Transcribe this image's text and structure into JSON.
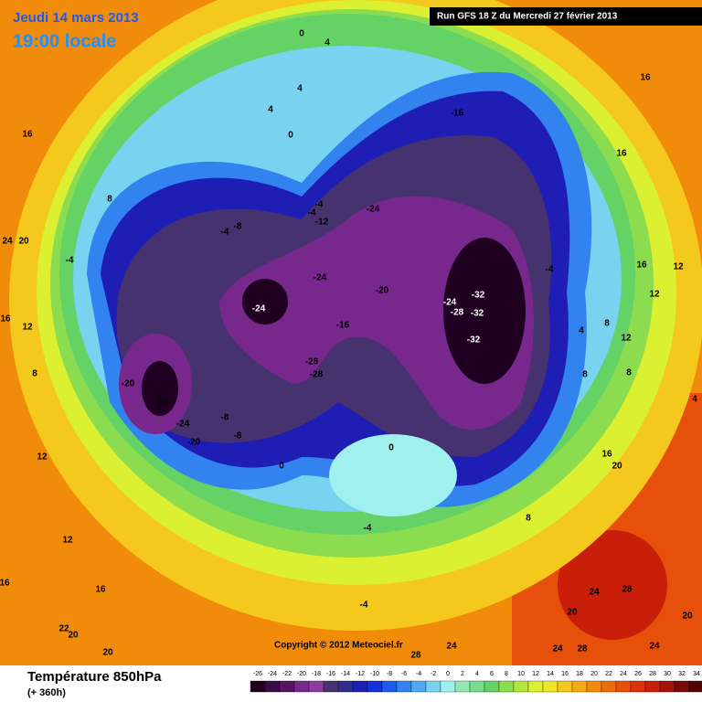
{
  "header": {
    "date": "Jeudi 14 mars 2013",
    "time": "19:00 locale",
    "run": "Run GFS 18 Z du Mercredi 27 février 2013"
  },
  "map": {
    "copyright": "Copyright © 2012 Meteociel.fr",
    "labels": [
      "0",
      "4",
      "4",
      "4",
      "0",
      "-16",
      "16",
      "16",
      "16",
      "8",
      "-4",
      "-4",
      "-12",
      "-8",
      "-4",
      "-24",
      "24",
      "20",
      "-4",
      "16",
      "12",
      "-4",
      "12",
      "-24",
      "-20",
      "-32",
      "-24",
      "-24",
      "-28",
      "-32",
      "16",
      "12",
      "8",
      "4",
      "-16",
      "-32",
      "12",
      "8",
      "-28",
      "-28",
      "8",
      "8",
      "-20",
      "-24",
      "4",
      "-24",
      "-8",
      "-8",
      "-20",
      "0",
      "16",
      "20",
      "0",
      "12",
      "8",
      "-4",
      "12",
      "16",
      "16",
      "24",
      "28",
      "-4",
      "20",
      "20",
      "22",
      "20",
      "20",
      "24",
      "28",
      "24",
      "28",
      "24"
    ]
  },
  "legend": {
    "title": "Température 850hPa",
    "subtitle": "(+ 360h)",
    "ticks": [
      -26,
      -24,
      -22,
      -20,
      -18,
      -16,
      -14,
      -12,
      -10,
      -8,
      -6,
      -4,
      -2,
      0,
      2,
      4,
      6,
      8,
      10,
      12,
      14,
      16,
      18,
      20,
      22,
      24,
      26,
      28,
      30,
      32,
      34
    ],
    "colors": [
      "#200020",
      "#3c0a46",
      "#5a1464",
      "#78288c",
      "#8c3ca0",
      "#46326e",
      "#2d2d8c",
      "#1e1eb4",
      "#1432dc",
      "#1e5af0",
      "#3282f0",
      "#50aaf0",
      "#78d2f0",
      "#a0f0f0",
      "#96e6b4",
      "#78dc8c",
      "#64d264",
      "#8cdc50",
      "#b4e63c",
      "#dcf032",
      "#f0e628",
      "#f5c81e",
      "#f5aa14",
      "#f08c0a",
      "#eb6e0a",
      "#e6500a",
      "#dc320a",
      "#c81e0a",
      "#a0140a",
      "#780a0a",
      "#500505"
    ]
  }
}
